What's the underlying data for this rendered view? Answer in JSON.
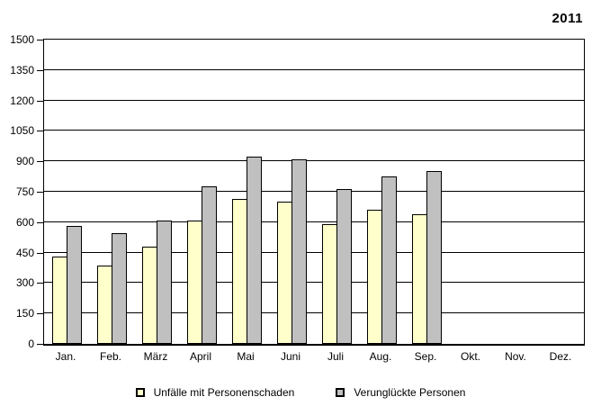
{
  "title": "2011",
  "chart_data": {
    "type": "bar",
    "title": "2011",
    "categories": [
      "Jan.",
      "Feb.",
      "März",
      "April",
      "Mai",
      "Juni",
      "Juli",
      "Aug.",
      "Sep.",
      "Okt.",
      "Nov.",
      "Dez."
    ],
    "series": [
      {
        "name": "Unfälle mit Personenschaden",
        "color": "#FFFFCC",
        "values": [
          430,
          385,
          480,
          610,
          715,
          700,
          590,
          660,
          640,
          null,
          null,
          null
        ]
      },
      {
        "name": "Verunglückte Personen",
        "color": "#C0C0C0",
        "values": [
          580,
          545,
          610,
          775,
          925,
          910,
          765,
          825,
          850,
          null,
          null,
          null
        ]
      }
    ],
    "xlabel": "",
    "ylabel": "",
    "ylim": [
      0,
      1500
    ],
    "ytick_step": 150,
    "yticks": [
      0,
      150,
      300,
      450,
      600,
      750,
      900,
      1050,
      1200,
      1350,
      1500
    ],
    "grid": true,
    "gridline_color": "#000000",
    "background": "#FFFFFF",
    "legend_position": "bottom"
  }
}
